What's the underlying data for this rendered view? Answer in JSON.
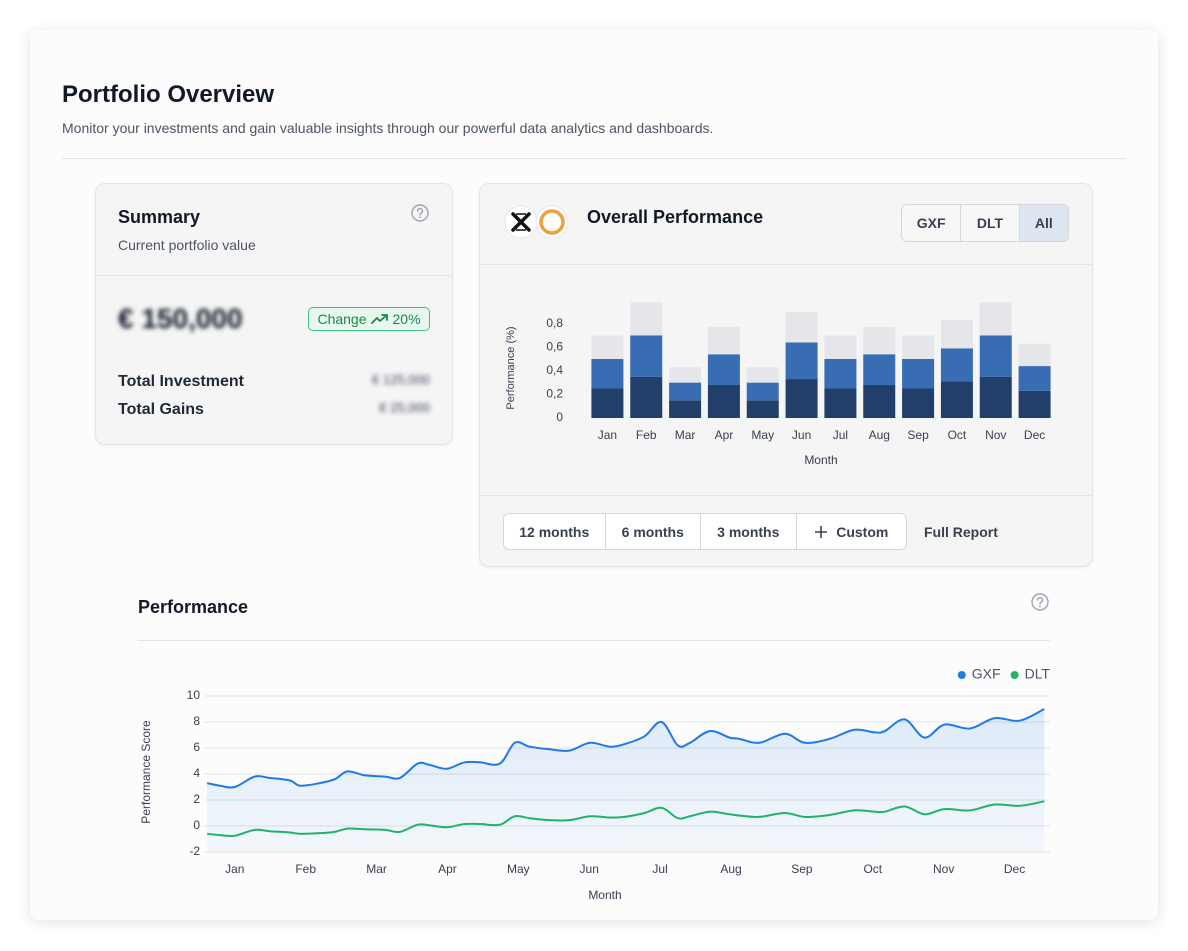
{
  "header": {
    "title": "Portfolio Overview",
    "subtitle": "Monitor your investments and gain valuable insights through our powerful data analytics and dashboards."
  },
  "summary": {
    "title": "Summary",
    "subtitle": "Current portfolio value",
    "value": "€ 150,000",
    "change_label": "Change",
    "change": "20%",
    "rows": [
      {
        "label": "Total Investment",
        "value": "€ 125,000"
      },
      {
        "label": "Total Gains",
        "value": "€ 25,000"
      }
    ]
  },
  "overall": {
    "toggles": [
      "GXF",
      "DLT",
      "All"
    ],
    "selected": "All",
    "ranges": [
      "12 months",
      "6 months",
      "3 months",
      "Custom"
    ],
    "full_report": "Full Report"
  },
  "chart_data": [
    {
      "type": "bar",
      "title": "Overall Performance",
      "stacked": true,
      "xlabel": "Month",
      "ylabel": "Performance (%)",
      "categories": [
        "Jan",
        "Feb",
        "Mar",
        "Apr",
        "May",
        "Jun",
        "Jul",
        "Aug",
        "Sep",
        "Oct",
        "Nov",
        "Dec"
      ],
      "series": [
        {
          "color": "#223f6a",
          "values": [
            0.25,
            0.35,
            0.15,
            0.28,
            0.15,
            0.33,
            0.25,
            0.28,
            0.25,
            0.31,
            0.35,
            0.23
          ]
        },
        {
          "color": "#386cb3",
          "values": [
            0.25,
            0.35,
            0.15,
            0.26,
            0.15,
            0.31,
            0.25,
            0.26,
            0.25,
            0.28,
            0.35,
            0.21
          ]
        },
        {
          "color": "#e4e6ea",
          "values": [
            0.2,
            0.28,
            0.13,
            0.23,
            0.13,
            0.26,
            0.2,
            0.23,
            0.2,
            0.24,
            0.28,
            0.19
          ]
        }
      ],
      "ylim": [
        0,
        1
      ],
      "yticks": [
        0,
        {
          "value": 0.2,
          "label": "0,2"
        },
        {
          "value": 0.4,
          "label": "0,4"
        },
        {
          "value": 0.6,
          "label": "0,6"
        },
        {
          "value": 0.8,
          "label": "0,8"
        }
      ],
      "grid": false
    },
    {
      "type": "line",
      "title": "Performance",
      "xlabel": "Month",
      "ylabel": "Performance Score",
      "legend": "top-right",
      "grid": true,
      "smooth": true,
      "x": [
        -0.39,
        -0.21,
        0,
        0.28,
        0.49,
        0.78,
        0.92,
        1.2,
        1.41,
        1.59,
        1.83,
        2.12,
        2.33,
        2.58,
        2.75,
        2.99,
        3.24,
        3.46,
        3.74,
        3.95,
        4.16,
        4.44,
        4.72,
        5.01,
        5.29,
        5.5,
        5.78,
        6.02,
        6.25,
        6.42,
        6.7,
        6.98,
        7.12,
        7.4,
        7.76,
        8.04,
        8.39,
        8.74,
        9.03,
        9.17,
        9.45,
        9.73,
        10.01,
        10.37,
        10.72,
        11.07,
        11.42
      ],
      "series": [
        {
          "name": "GXF",
          "color": "#1f7ae6",
          "fill": true,
          "values": [
            3.3,
            3.1,
            3.0,
            3.8,
            3.7,
            3.5,
            3.1,
            3.3,
            3.6,
            4.2,
            3.9,
            3.8,
            3.7,
            4.8,
            4.7,
            4.4,
            4.9,
            4.9,
            4.8,
            6.4,
            6.1,
            5.9,
            5.8,
            6.4,
            6.1,
            6.3,
            6.9,
            8.0,
            6.2,
            6.4,
            7.3,
            6.8,
            6.7,
            6.4,
            7.1,
            6.4,
            6.7,
            7.4,
            7.2,
            7.3,
            8.2,
            6.8,
            7.8,
            7.5,
            8.3,
            8.1,
            9.0
          ]
        },
        {
          "name": "DLT",
          "color": "#22b26c",
          "fill": false,
          "values": [
            -0.6,
            -0.7,
            -0.75,
            -0.3,
            -0.4,
            -0.5,
            -0.6,
            -0.55,
            -0.45,
            -0.2,
            -0.25,
            -0.3,
            -0.45,
            0.1,
            0.05,
            -0.1,
            0.15,
            0.15,
            0.1,
            0.75,
            0.6,
            0.45,
            0.45,
            0.75,
            0.65,
            0.7,
            1.0,
            1.4,
            0.6,
            0.75,
            1.1,
            0.9,
            0.8,
            0.7,
            1.0,
            0.7,
            0.85,
            1.2,
            1.1,
            1.1,
            1.5,
            0.9,
            1.3,
            1.2,
            1.65,
            1.55,
            1.9
          ]
        }
      ],
      "xlim": [
        -0.42,
        11.5
      ],
      "xticks": [
        {
          "value": 0,
          "label": "Jan"
        },
        {
          "value": 1,
          "label": "Feb"
        },
        {
          "value": 2,
          "label": "Mar"
        },
        {
          "value": 3,
          "label": "Apr"
        },
        {
          "value": 4,
          "label": "May"
        },
        {
          "value": 5,
          "label": "Jun"
        },
        {
          "value": 6,
          "label": "Jul"
        },
        {
          "value": 7,
          "label": "Aug"
        },
        {
          "value": 8,
          "label": "Sep"
        },
        {
          "value": 9,
          "label": "Oct"
        },
        {
          "value": 10,
          "label": "Nov"
        },
        {
          "value": 11,
          "label": "Dec"
        }
      ],
      "ylim": [
        -2,
        10
      ],
      "yticks": [
        -2,
        0,
        2,
        4,
        6,
        8,
        10
      ]
    }
  ]
}
